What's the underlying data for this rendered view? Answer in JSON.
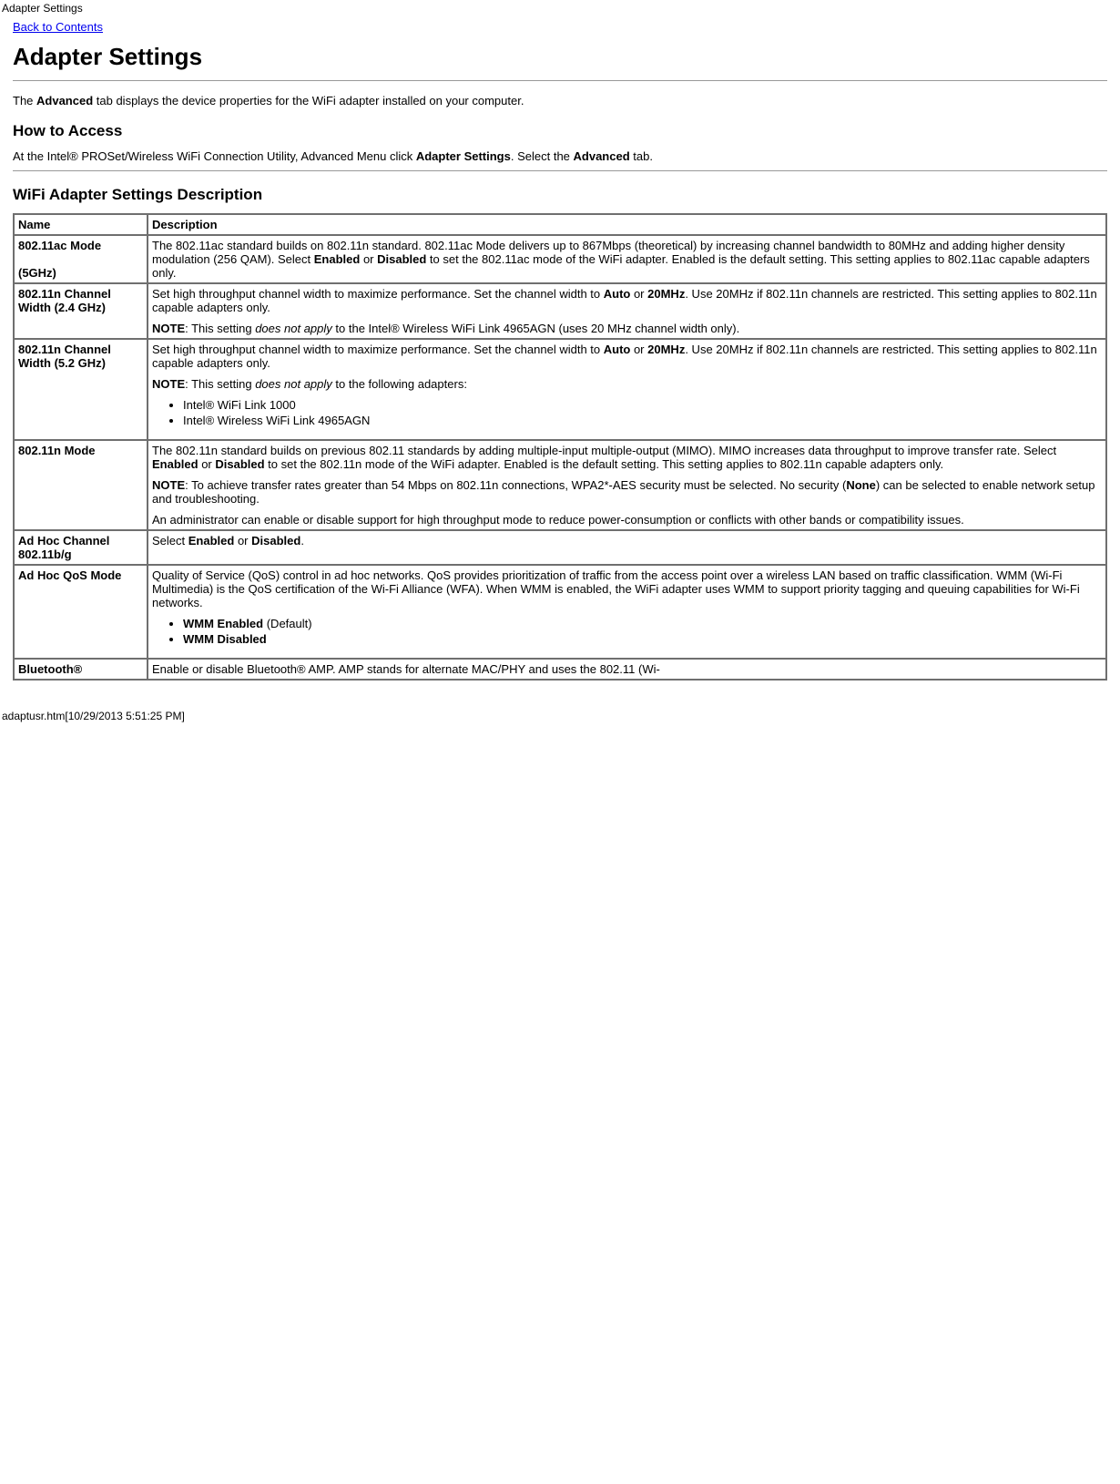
{
  "header_small": "Adapter Settings",
  "back_link": "Back to Contents",
  "page_title": "Adapter Settings",
  "intro": {
    "prefix": " The ",
    "advanced": "Advanced",
    "suffix": " tab displays the device properties for the WiFi adapter installed on your computer."
  },
  "how_to_access_heading": "How to Access",
  "how_to_access": {
    "p1_a": "At the Intel® PROSet/Wireless WiFi Connection Utility, Advanced Menu click ",
    "p1_b": "Adapter Settings",
    "p1_c": ". Select the ",
    "p1_d": "Advanced",
    "p1_e": " tab."
  },
  "table_heading": "WiFi Adapter Settings Description",
  "columns": {
    "name": "Name",
    "description": "Description"
  },
  "rows": {
    "ac_mode": {
      "name_line1": "802.11ac Mode",
      "name_line2": " (5GHz)",
      "d_a": "The 802.11ac standard builds on 802.11n standard. 802.11ac Mode delivers up to 867Mbps (theoretical) by increasing channel bandwidth to 80MHz and adding higher density modulation (256 QAM). Select ",
      "d_enabled": "Enabled",
      "d_or": " or ",
      "d_disabled": "Disabled",
      "d_b": " to set the 802.11ac mode of the WiFi adapter. Enabled is the default setting. This setting applies to 802.11ac capable adapters only."
    },
    "n24": {
      "name": "802.11n Channel Width (2.4 GHz)",
      "d_a": "Set high throughput channel width to maximize performance. Set the channel width to ",
      "d_auto": "Auto",
      "d_or": " or ",
      "d_20": "20MHz",
      "d_b": ". Use 20MHz if 802.11n channels are restricted. This setting applies to 802.11n capable adapters only.",
      "note_label": "NOTE",
      "note_a": ": This setting ",
      "note_i": "does not apply",
      "note_b": " to the Intel® Wireless WiFi Link 4965AGN (uses 20 MHz channel width only)."
    },
    "n52": {
      "name": "802.11n Channel Width (5.2 GHz)",
      "d_a": "Set high throughput channel width to maximize performance. Set the channel width to ",
      "d_auto": "Auto",
      "d_or": " or ",
      "d_20": "20MHz",
      "d_b": ". Use 20MHz if 802.11n channels are restricted. This setting applies to 802.11n capable adapters only.",
      "note_label": "NOTE",
      "note_a": ": This setting ",
      "note_i": "does not apply",
      "note_b": " to the following adapters:",
      "li1": "Intel® WiFi Link 1000",
      "li2": "Intel® Wireless WiFi Link 4965AGN"
    },
    "n_mode": {
      "name": "802.11n Mode",
      "d_a": "The 802.11n standard builds on previous 802.11 standards by adding multiple-input multiple-output (MIMO). MIMO increases data throughput to improve transfer rate. Select ",
      "d_enabled": "Enabled",
      "d_or": " or ",
      "d_disabled": "Disabled",
      "d_b": " to set the 802.11n mode of the WiFi adapter. Enabled is the default setting. This setting applies to 802.11n capable adapters only.",
      "note_label": "NOTE",
      "note_a": ": To achieve transfer rates greater than 54 Mbps on 802.11n connections, WPA2*-AES security must be selected. No security (",
      "note_none": "None",
      "note_b": ") can be selected to enable network setup and troubleshooting.",
      "p3": "An administrator can enable or disable support for high throughput mode to reduce power-consumption or conflicts with other bands or compatibility issues."
    },
    "adhoc_channel": {
      "name": "Ad Hoc Channel 802.11b/g",
      "d_a": "Select ",
      "d_enabled": "Enabled",
      "d_or": " or ",
      "d_disabled": "Disabled",
      "d_b": "."
    },
    "adhoc_qos": {
      "name": "Ad Hoc QoS Mode",
      "d": "Quality of Service (QoS) control in ad hoc networks. QoS provides prioritization of traffic from the access point over a wireless LAN based on traffic classification. WMM (Wi-Fi Multimedia) is the QoS certification of the Wi-Fi Alliance (WFA). When WMM is enabled, the WiFi adapter uses WMM to support priority tagging and queuing capabilities for Wi-Fi networks.",
      "li1_a": "WMM Enabled",
      "li1_b": " (Default)",
      "li2": "WMM Disabled"
    },
    "bluetooth": {
      "name": "Bluetooth®",
      "d": "Enable or disable Bluetooth® AMP. AMP stands for alternate MAC/PHY and uses the 802.11 (Wi-"
    }
  },
  "footer": "adaptusr.htm[10/29/2013 5:51:25 PM]"
}
